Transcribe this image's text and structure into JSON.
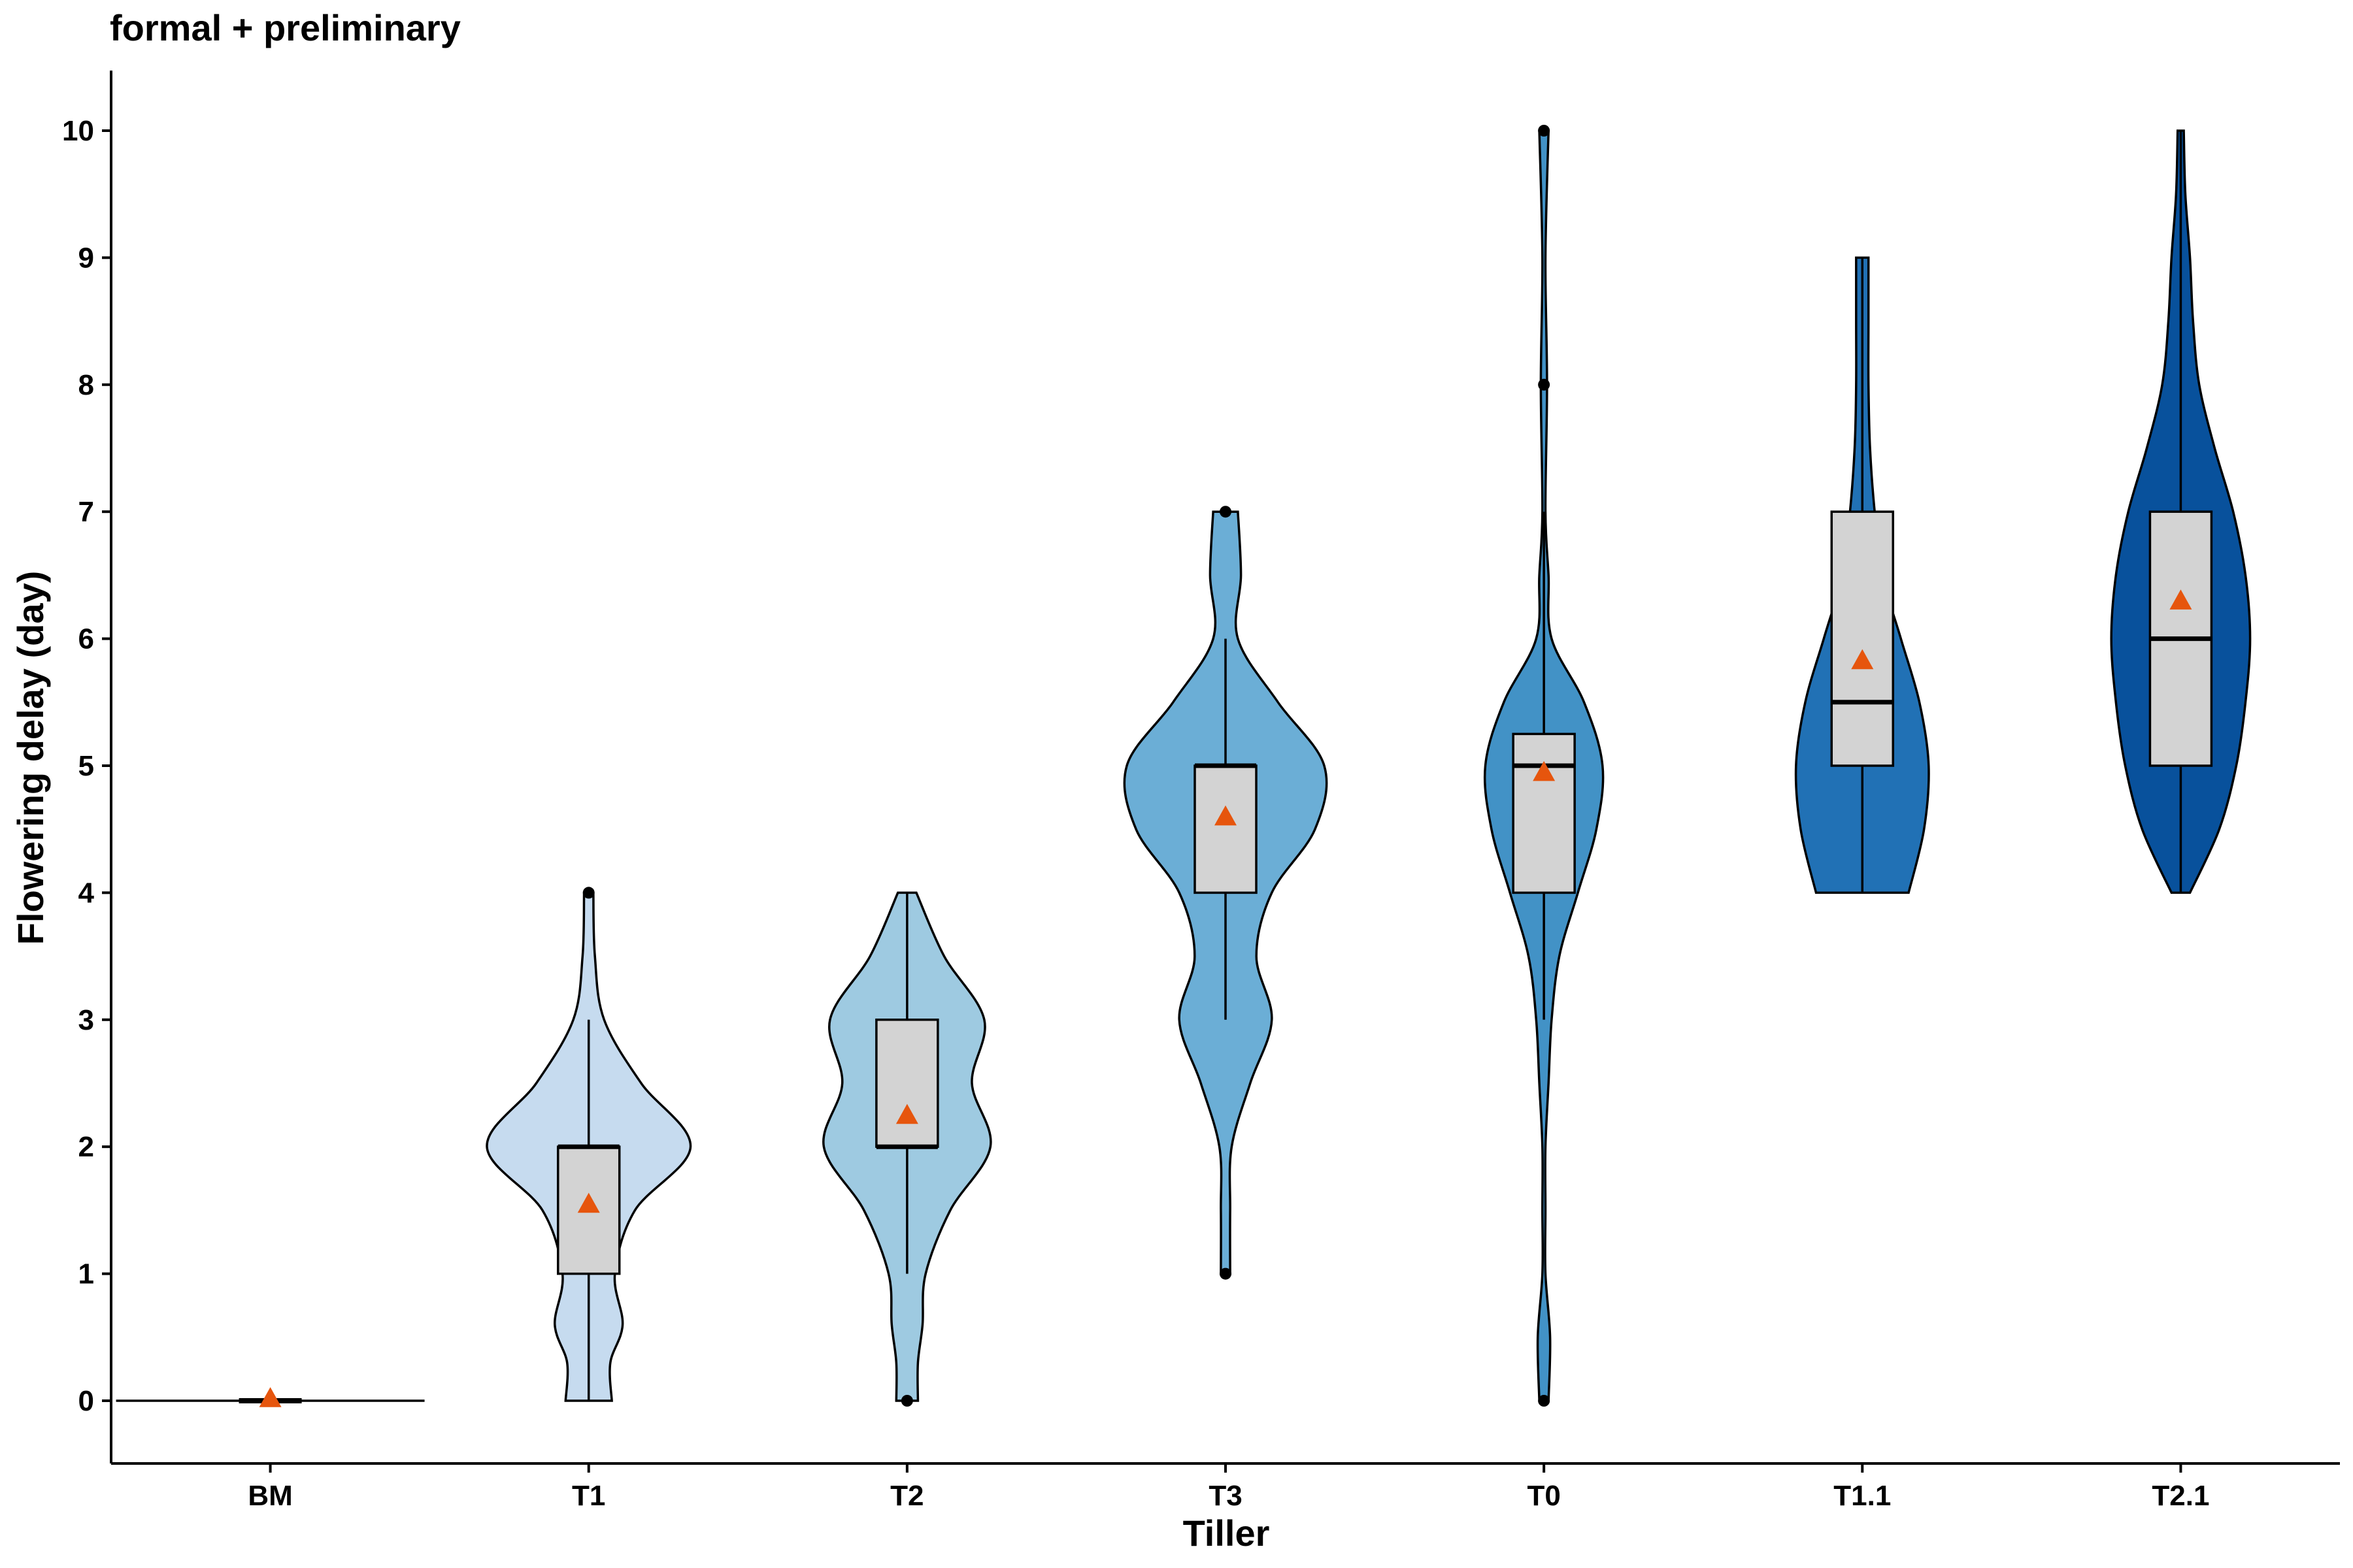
{
  "chart_data": {
    "type": "violin",
    "title": "formal + preliminary",
    "xlabel": "Tiller",
    "ylabel": "Flowering delay (day)",
    "ylim": [
      -0.5,
      10.5
    ],
    "yticks": [
      0,
      1,
      2,
      3,
      4,
      5,
      6,
      7,
      8,
      9,
      10
    ],
    "grid": false,
    "legend": "none",
    "box_fill": "#d3d3d3",
    "mean_marker_color": "#e6550d",
    "categories": [
      "BM",
      "T1",
      "T2",
      "T3",
      "T0",
      "T1.1",
      "T2.1"
    ],
    "groups": [
      {
        "name": "BM",
        "fill": "#c6dbef",
        "min": 0,
        "q1": 0,
        "median": 0,
        "q3": 0,
        "max": 0,
        "mean": 0.02,
        "outliers": [],
        "density": [
          [
            0,
            1.0
          ]
        ]
      },
      {
        "name": "T1",
        "fill": "#c6dbef",
        "min": 0,
        "q1": 1,
        "median": 2,
        "q3": 2,
        "max": 3,
        "mean": 1.55,
        "outliers": [
          4
        ],
        "density": [
          [
            0,
            0.15
          ],
          [
            0.3,
            0.14
          ],
          [
            0.6,
            0.22
          ],
          [
            1.0,
            0.17
          ],
          [
            1.5,
            0.3
          ],
          [
            2.0,
            0.66
          ],
          [
            2.5,
            0.34
          ],
          [
            3.0,
            0.1
          ],
          [
            3.5,
            0.04
          ],
          [
            4.0,
            0.03
          ]
        ]
      },
      {
        "name": "T2",
        "fill": "#9ecae1",
        "min": 1,
        "q1": 2,
        "median": 2,
        "q3": 3,
        "max": 4,
        "mean": 2.25,
        "outliers": [
          0
        ],
        "density": [
          [
            0,
            0.07
          ],
          [
            0.3,
            0.07
          ],
          [
            0.6,
            0.1
          ],
          [
            1.0,
            0.12
          ],
          [
            1.5,
            0.28
          ],
          [
            2.0,
            0.54
          ],
          [
            2.5,
            0.42
          ],
          [
            3.0,
            0.5
          ],
          [
            3.5,
            0.24
          ],
          [
            4.0,
            0.06
          ]
        ]
      },
      {
        "name": "T3",
        "fill": "#6baed6",
        "min": 3,
        "q1": 4,
        "median": 5,
        "q3": 5,
        "max": 6,
        "mean": 4.6,
        "outliers": [
          1,
          7
        ],
        "density": [
          [
            1.0,
            0.03
          ],
          [
            1.5,
            0.03
          ],
          [
            2.0,
            0.04
          ],
          [
            2.5,
            0.16
          ],
          [
            3.0,
            0.3
          ],
          [
            3.5,
            0.2
          ],
          [
            4.0,
            0.3
          ],
          [
            4.5,
            0.58
          ],
          [
            5.0,
            0.64
          ],
          [
            5.5,
            0.34
          ],
          [
            6.0,
            0.08
          ],
          [
            6.5,
            0.1
          ],
          [
            7.0,
            0.08
          ]
        ]
      },
      {
        "name": "T0",
        "fill": "#4292c6",
        "min": 3,
        "q1": 4,
        "median": 5,
        "q3": 5.25,
        "max": 7,
        "mean": 4.95,
        "outliers": [
          0,
          8,
          10
        ],
        "density": [
          [
            0,
            0.03
          ],
          [
            0.5,
            0.04
          ],
          [
            1.0,
            0.01
          ],
          [
            1.5,
            0.01
          ],
          [
            2.0,
            0.01
          ],
          [
            2.5,
            0.03
          ],
          [
            3.0,
            0.05
          ],
          [
            3.5,
            0.1
          ],
          [
            4.0,
            0.22
          ],
          [
            4.5,
            0.34
          ],
          [
            5.0,
            0.38
          ],
          [
            5.5,
            0.26
          ],
          [
            6.0,
            0.05
          ],
          [
            6.5,
            0.03
          ],
          [
            7.0,
            0.01
          ],
          [
            8.0,
            0.02
          ],
          [
            9.0,
            0.01
          ],
          [
            10.0,
            0.03
          ]
        ]
      },
      {
        "name": "T1.1",
        "fill": "#2171b5",
        "min": 4,
        "q1": 5,
        "median": 5.5,
        "q3": 7,
        "max": 9,
        "mean": 5.83,
        "outliers": [],
        "density": [
          [
            4.0,
            0.3
          ],
          [
            4.5,
            0.4
          ],
          [
            5.0,
            0.43
          ],
          [
            5.5,
            0.37
          ],
          [
            6.0,
            0.25
          ],
          [
            6.5,
            0.13
          ],
          [
            7.0,
            0.08
          ],
          [
            7.5,
            0.05
          ],
          [
            8.0,
            0.04
          ],
          [
            8.5,
            0.04
          ],
          [
            9.0,
            0.04
          ]
        ]
      },
      {
        "name": "T2.1",
        "fill": "#08519c",
        "min": 4,
        "q1": 5,
        "median": 6,
        "q3": 7,
        "max": 10,
        "mean": 6.3,
        "outliers": [],
        "density": [
          [
            4.0,
            0.06
          ],
          [
            4.5,
            0.25
          ],
          [
            5.0,
            0.36
          ],
          [
            5.5,
            0.42
          ],
          [
            6.0,
            0.45
          ],
          [
            6.5,
            0.42
          ],
          [
            7.0,
            0.34
          ],
          [
            7.5,
            0.22
          ],
          [
            8.0,
            0.12
          ],
          [
            8.5,
            0.08
          ],
          [
            9.0,
            0.06
          ],
          [
            9.5,
            0.03
          ],
          [
            10.0,
            0.02
          ]
        ]
      }
    ]
  }
}
